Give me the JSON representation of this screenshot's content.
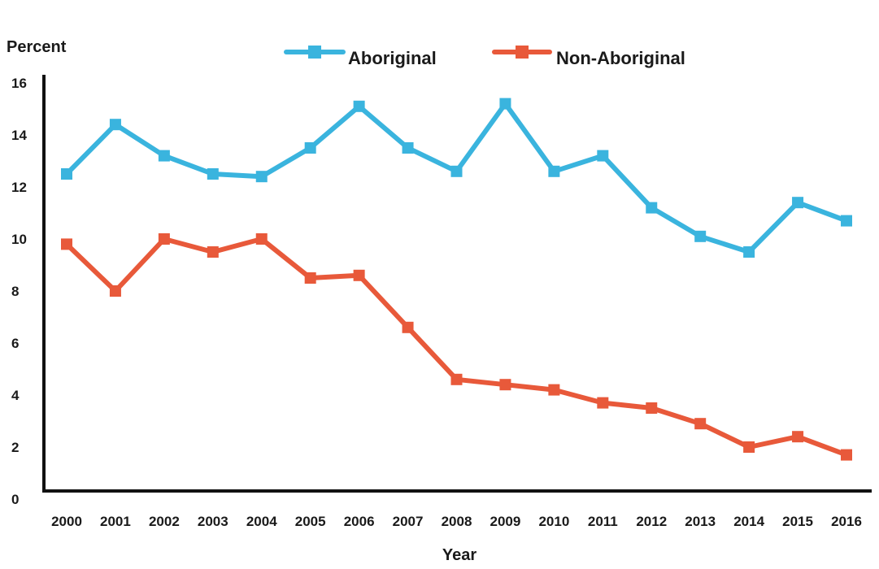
{
  "chart_data": {
    "type": "line",
    "title": "",
    "ylabel": "Percent",
    "xlabel": "Year",
    "ylim": [
      0,
      16
    ],
    "yticks": [
      0,
      2,
      4,
      6,
      8,
      10,
      12,
      14,
      16
    ],
    "x": [
      "2000",
      "2001",
      "2002",
      "2003",
      "2004",
      "2005",
      "2006",
      "2007",
      "2008",
      "2009",
      "2010",
      "2011",
      "2012",
      "2013",
      "2014",
      "2015",
      "2016"
    ],
    "grid": false,
    "legend_position": "top",
    "series": [
      {
        "name": "Aboriginal",
        "color": "#3ab4de",
        "values": [
          12.5,
          14.4,
          13.2,
          12.5,
          12.4,
          13.5,
          15.1,
          13.5,
          12.6,
          15.2,
          12.6,
          13.2,
          11.2,
          10.1,
          9.5,
          11.4,
          10.7
        ]
      },
      {
        "name": "Non-Aboriginal",
        "color": "#e8593a",
        "values": [
          9.8,
          8.0,
          10.0,
          9.5,
          10.0,
          8.5,
          8.6,
          6.6,
          4.6,
          4.4,
          4.2,
          3.7,
          3.5,
          2.9,
          2.0,
          2.4,
          1.7
        ]
      }
    ]
  }
}
